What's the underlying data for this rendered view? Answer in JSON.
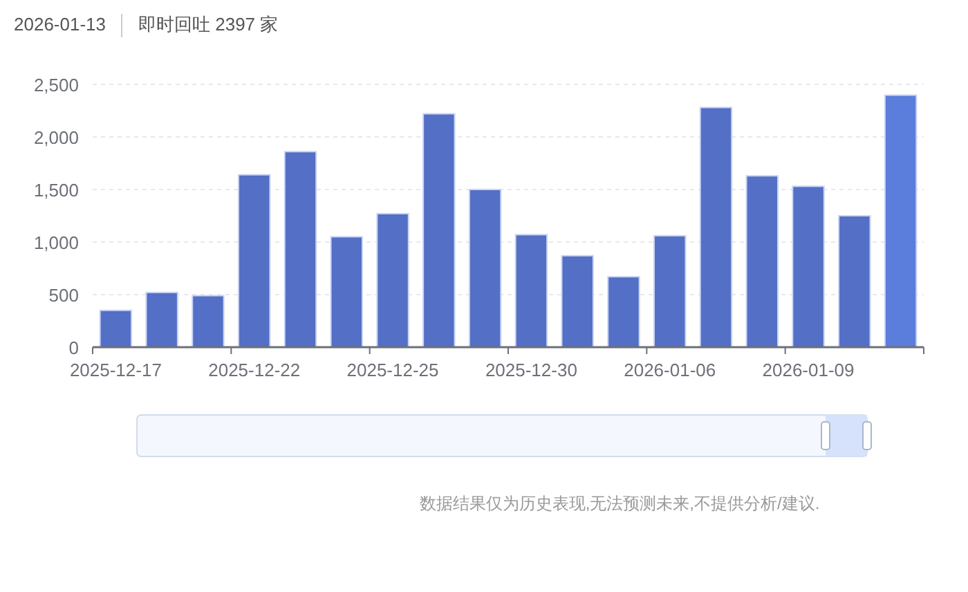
{
  "chart_data": {
    "type": "bar",
    "categories": [
      "2025-12-17",
      null,
      null,
      "2025-12-22",
      null,
      null,
      "2025-12-25",
      null,
      null,
      "2025-12-30",
      null,
      null,
      "2026-01-06",
      null,
      null,
      "2026-01-09",
      null,
      null
    ],
    "values": [
      350,
      520,
      490,
      1640,
      1860,
      1050,
      1270,
      2220,
      1500,
      1070,
      870,
      670,
      1060,
      2280,
      1630,
      1530,
      1250,
      2397
    ],
    "colors": [
      "#536fc6",
      "#536fc6",
      "#536fc6",
      "#536fc6",
      "#536fc6",
      "#536fc6",
      "#536fc6",
      "#536fc6",
      "#536fc6",
      "#536fc6",
      "#536fc6",
      "#536fc6",
      "#536fc6",
      "#536fc6",
      "#536fc6",
      "#536fc6",
      "#536fc6",
      "#5b7ddb"
    ],
    "ylim": [
      0,
      2500
    ],
    "yticks": [
      {
        "value": 0,
        "label": "0"
      },
      {
        "value": 500,
        "label": "500"
      },
      {
        "value": 1000,
        "label": "1,000"
      },
      {
        "value": 1500,
        "label": "1,500"
      },
      {
        "value": 2000,
        "label": "2,000"
      },
      {
        "value": 2500,
        "label": "2,500"
      }
    ],
    "grid": "y",
    "annotations": [
      "2026-01-13",
      "即时回吐 2397 家",
      "数据结果仅为历史表现,无法预测未来,不提供分析/建议."
    ]
  }
}
